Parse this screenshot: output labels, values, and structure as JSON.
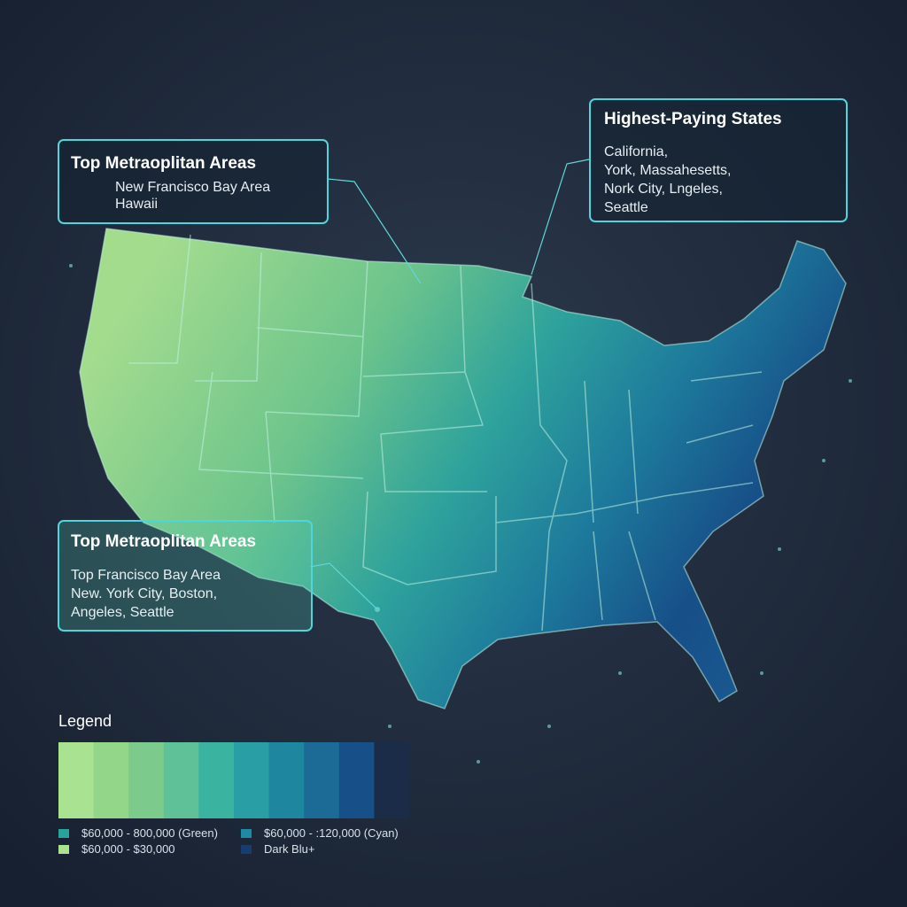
{
  "callouts": [
    {
      "title": "Top Metraoplitan Areas",
      "lines": [
        "New Francisco Bay Area",
        "Hawaii"
      ]
    },
    {
      "title": "Highest-Paying States",
      "lines": [
        "California,",
        "York, Massahesetts,",
        "Nork City, Lngeles,",
        "Seattle"
      ]
    },
    {
      "title": "Top Metraoplitan Areas",
      "lines": [
        "Top Francisco Bay Area",
        "New. York City, Boston,",
        "Angeles, Seattle"
      ]
    }
  ],
  "legend": {
    "title": "Legend",
    "scale_colors": [
      "#a9e392",
      "#93d68a",
      "#7ccb8c",
      "#5ec197",
      "#3bb3a1",
      "#2a9ea5",
      "#1f86a0",
      "#1b6b96",
      "#174f88",
      "#1b2c48"
    ],
    "entries": [
      {
        "label": "$60,000 - 800,000 (Green)",
        "color": "#2aa39a"
      },
      {
        "label": "$60,000 - :120,000 (Cyan)",
        "color": "#1e8ba4"
      },
      {
        "label": "$60,000 - $30,000",
        "color": "#a9e392"
      },
      {
        "label": "Dark Blu+",
        "color": "#173d6e"
      }
    ]
  }
}
